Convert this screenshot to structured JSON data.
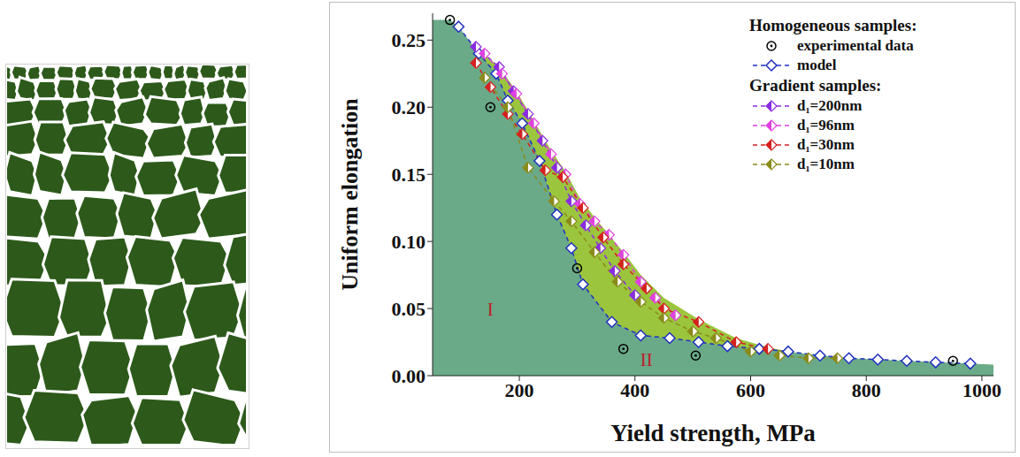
{
  "chart_data": {
    "type": "scatter",
    "x_label": "Yield strength, MPa",
    "y_label": "Uniform elongation",
    "xlim": [
      50,
      1020
    ],
    "xticks": [
      200,
      400,
      600,
      800,
      1000
    ],
    "ylim": [
      0,
      0.27
    ],
    "yticks": [
      {
        "value": 0,
        "label": "0.00"
      },
      {
        "value": 0.05,
        "label": "0.05"
      },
      {
        "value": 0.1,
        "label": "0.10"
      },
      {
        "value": 0.15,
        "label": "0.15"
      },
      {
        "value": 0.2,
        "label": "0.20"
      },
      {
        "value": 0.25,
        "label": "0.25"
      }
    ],
    "legend": "top-right",
    "series": [
      {
        "name": "experimental data",
        "group": "Homogeneous samples:",
        "color": "#000000",
        "marker": "circle",
        "line_style": "none",
        "x": [
          80,
          150,
          300,
          380,
          505,
          950
        ],
        "values": [
          0.265,
          0.2,
          0.08,
          0.02,
          0.015,
          0.011
        ]
      },
      {
        "name": "model",
        "group": "Homogeneous samples:",
        "color": "#1f2fc0",
        "marker": "diamond",
        "line_style": "dashed",
        "x": [
          95,
          130,
          160,
          180,
          205,
          235,
          265,
          290,
          310,
          360,
          410,
          460,
          510,
          560,
          615,
          665,
          720,
          770,
          820,
          870,
          920,
          980
        ],
        "values": [
          0.26,
          0.24,
          0.225,
          0.205,
          0.188,
          0.16,
          0.12,
          0.095,
          0.068,
          0.04,
          0.03,
          0.028,
          0.025,
          0.022,
          0.02,
          0.018,
          0.015,
          0.013,
          0.012,
          0.011,
          0.01,
          0.009
        ]
      },
      {
        "name": "d₁=200nm",
        "group": "Gradient samples:",
        "color": "#8a2be2",
        "marker": "half_diamond",
        "line_style": "dashed",
        "x": [
          125,
          165,
          190,
          215,
          240,
          265,
          290,
          315,
          340,
          365,
          400
        ],
        "values": [
          0.245,
          0.23,
          0.212,
          0.195,
          0.175,
          0.155,
          0.13,
          0.112,
          0.095,
          0.078,
          0.06
        ]
      },
      {
        "name": "d₁=96nm",
        "group": "Gradient samples:",
        "color": "#e040e0",
        "marker": "half_diamond",
        "line_style": "dashed",
        "x": [
          140,
          170,
          195,
          225,
          255,
          280,
          305,
          330,
          355,
          380,
          410,
          435,
          470
        ],
        "values": [
          0.24,
          0.225,
          0.21,
          0.188,
          0.165,
          0.15,
          0.128,
          0.115,
          0.105,
          0.09,
          0.07,
          0.058,
          0.045
        ]
      },
      {
        "name": "d₁=30nm",
        "group": "Gradient samples:",
        "color": "#d62020",
        "marker": "half_diamond",
        "line_style": "dashed",
        "x": [
          125,
          150,
          180,
          205,
          245,
          275,
          310,
          345,
          380,
          420,
          450,
          510,
          575,
          630
        ],
        "values": [
          0.233,
          0.215,
          0.195,
          0.18,
          0.153,
          0.148,
          0.125,
          0.103,
          0.083,
          0.065,
          0.05,
          0.04,
          0.025,
          0.02
        ]
      },
      {
        "name": "d₁=10nm",
        "group": "Gradient samples:",
        "color": "#8b8b1a",
        "marker": "half_diamond",
        "line_style": "dashed",
        "x": [
          140,
          180,
          215,
          260,
          290,
          330,
          370,
          410,
          450,
          500,
          540,
          600,
          650,
          700,
          750
        ],
        "values": [
          0.222,
          0.2,
          0.155,
          0.13,
          0.115,
          0.092,
          0.07,
          0.055,
          0.043,
          0.033,
          0.028,
          0.018,
          0.015,
          0.013,
          0.013
        ]
      }
    ],
    "regions": [
      {
        "label": "II",
        "label_x": 420,
        "label_y": 0.012,
        "color": "#9bc53d",
        "x": [
          125,
          165,
          195,
          225,
          255,
          280,
          305,
          330,
          355,
          380,
          410,
          450,
          510,
          575,
          630,
          700,
          750,
          1020
        ],
        "values": [
          0.245,
          0.23,
          0.212,
          0.19,
          0.168,
          0.152,
          0.132,
          0.118,
          0.105,
          0.092,
          0.075,
          0.058,
          0.042,
          0.028,
          0.021,
          0.015,
          0.013,
          0.008
        ]
      },
      {
        "label": "I",
        "label_x": 150,
        "label_y": 0.05,
        "color": "#6aaa88",
        "x": [
          50,
          80,
          95,
          130,
          160,
          180,
          205,
          235,
          265,
          290,
          310,
          360,
          410,
          460,
          510,
          560,
          615,
          665,
          720,
          770,
          820,
          870,
          920,
          980,
          1020
        ],
        "values": [
          0.265,
          0.265,
          0.26,
          0.24,
          0.225,
          0.205,
          0.188,
          0.16,
          0.12,
          0.095,
          0.068,
          0.04,
          0.03,
          0.028,
          0.025,
          0.022,
          0.02,
          0.018,
          0.015,
          0.013,
          0.012,
          0.011,
          0.01,
          0.009,
          0.008
        ]
      }
    ]
  }
}
